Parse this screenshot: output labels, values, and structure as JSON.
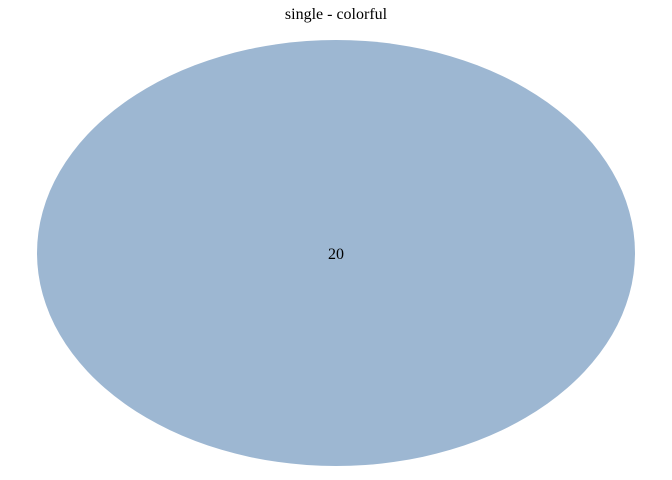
{
  "title": "single - colorful",
  "venn": {
    "sets": [
      {
        "count": "20",
        "fill_color": "#9db7d2"
      }
    ]
  }
}
